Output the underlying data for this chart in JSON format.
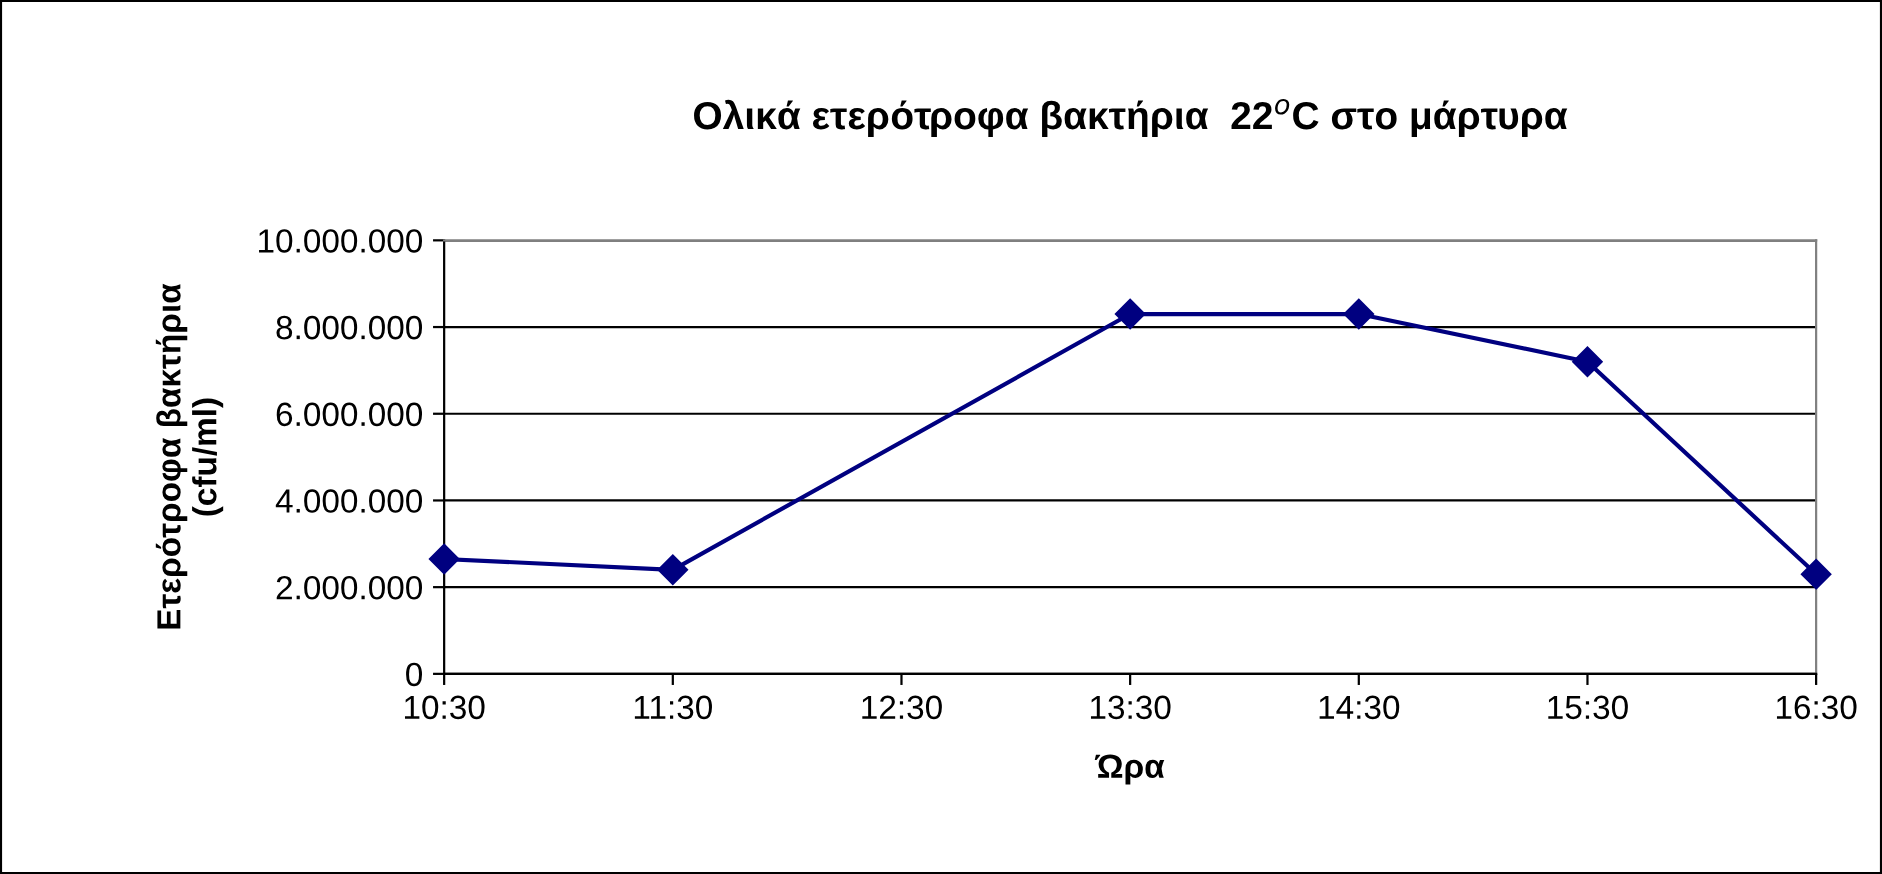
{
  "chart_data": {
    "type": "line",
    "title": "Ολικά ετερότροφα βακτήρια  22$^{o}$C στο μάρτυρα",
    "xlabel": "Ώρα",
    "ylabel": "Ετερότροφα βακτήρια\n(cfu/ml)",
    "x": [
      10.5,
      11.5,
      13.5,
      14.5,
      15.5,
      16.5
    ],
    "series": [
      {
        "color": "#000080",
        "values": [
          2650000,
          2400000,
          8300000,
          8300000,
          7200000,
          2300000
        ]
      }
    ],
    "xlim": [
      10.5,
      16.5
    ],
    "xticks": [
      {
        "value": 10.5,
        "label": "10:30"
      },
      {
        "value": 11.5,
        "label": "11:30"
      },
      {
        "value": 12.5,
        "label": "12:30"
      },
      {
        "value": 13.5,
        "label": "13:30"
      },
      {
        "value": 14.5,
        "label": "14:30"
      },
      {
        "value": 15.5,
        "label": "15:30"
      },
      {
        "value": 16.5,
        "label": "16:30"
      }
    ],
    "ylim": [
      0,
      10000000
    ],
    "yticks": [
      0,
      {
        "value": 2000000,
        "label": "2.000.000"
      },
      {
        "value": 4000000,
        "label": "4.000.000"
      },
      {
        "value": 6000000,
        "label": "6.000.000"
      },
      {
        "value": 8000000,
        "label": "8.000.000"
      },
      {
        "value": 10000000,
        "label": "10.000.000"
      }
    ],
    "grid": "y",
    "marker": "diamond",
    "line_style": "solid",
    "legend": false
  }
}
